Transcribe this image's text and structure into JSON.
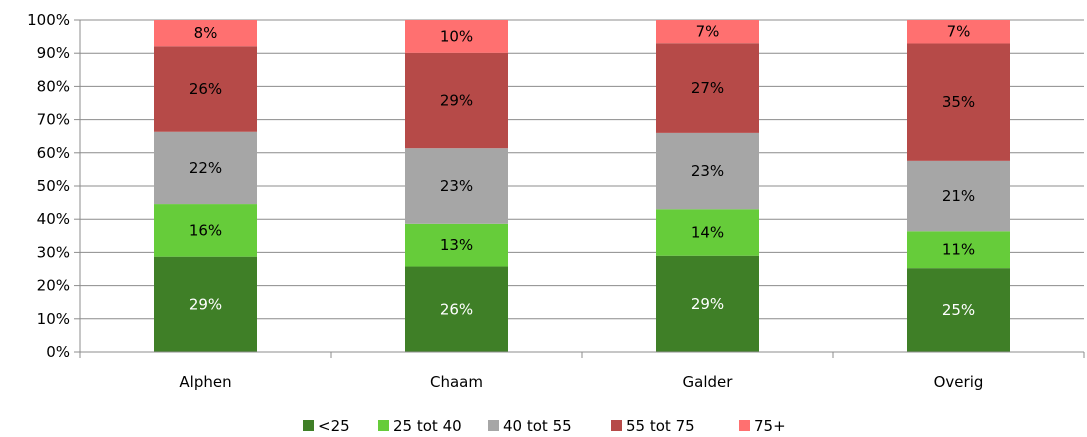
{
  "chart_data": {
    "type": "bar",
    "stacked": true,
    "normalized": true,
    "categories": [
      "Alphen",
      "Chaam",
      "Galder",
      "Overig"
    ],
    "series": [
      {
        "name": "<25",
        "color": "#3f7f27",
        "values": [
          29,
          26,
          29,
          25
        ],
        "labels": [
          "29%",
          "26%",
          "29%",
          "25%"
        ],
        "label_color": "#ffffff"
      },
      {
        "name": "25 tot 40",
        "color": "#66cc3a",
        "values": [
          16,
          13,
          14,
          11
        ],
        "labels": [
          "16%",
          "13%",
          "14%",
          "11%"
        ],
        "label_color": "#000000"
      },
      {
        "name": "40 tot 55",
        "color": "#a6a6a6",
        "values": [
          22,
          23,
          23,
          21
        ],
        "labels": [
          "22%",
          "23%",
          "23%",
          "21%"
        ],
        "label_color": "#000000"
      },
      {
        "name": "55 tot 75",
        "color": "#b64a48",
        "values": [
          26,
          29,
          27,
          35
        ],
        "labels": [
          "26%",
          "29%",
          "27%",
          "35%"
        ],
        "label_color": "#000000"
      },
      {
        "name": "75+",
        "color": "#ff7070",
        "values": [
          8,
          10,
          7,
          7
        ],
        "labels": [
          "8%",
          "10%",
          "7%",
          "7%"
        ],
        "label_color": "#000000"
      }
    ],
    "ylim": [
      0,
      100
    ],
    "yticks": [
      "0%",
      "10%",
      "20%",
      "30%",
      "40%",
      "50%",
      "60%",
      "70%",
      "80%",
      "90%",
      "100%"
    ],
    "grid": true,
    "legend": "bottom"
  }
}
